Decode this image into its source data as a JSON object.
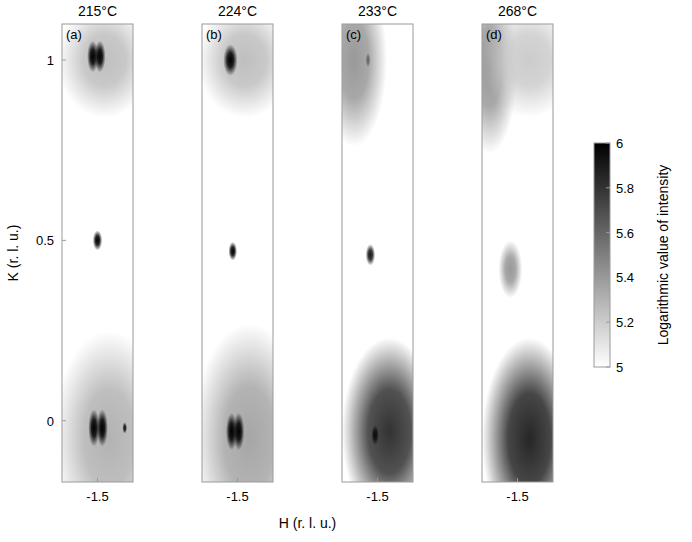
{
  "chart_data": {
    "type": "heatmap",
    "xlabel": "H (r. l. u.)",
    "ylabel": "K (r. l. u.)",
    "xlim": [
      -1.65,
      -1.35
    ],
    "xticks": [
      -1.5
    ],
    "ylim": [
      -0.17,
      1.1
    ],
    "yticks": [
      0,
      0.5,
      1
    ],
    "colorbar": {
      "label": "Logarithmic value of intensity",
      "range": [
        5,
        6
      ],
      "ticks": [
        5,
        5.2,
        5.4,
        5.6,
        5.8,
        6
      ]
    },
    "panels": [
      {
        "letter": "(a)",
        "title": "215°C",
        "spots": [
          {
            "h": -1.45,
            "k": -0.05,
            "value": 5.3,
            "width_h": 0.12,
            "width_k": 0.15
          },
          {
            "h": -1.47,
            "k": 1.0,
            "value": 5.25,
            "width_h": 0.1,
            "width_k": 0.08
          },
          {
            "h": -1.52,
            "k": 1.01,
            "value": 6,
            "width_h": 0.012,
            "width_k": 0.022
          },
          {
            "h": -1.49,
            "k": 1.01,
            "value": 6,
            "width_h": 0.012,
            "width_k": 0.022
          },
          {
            "h": -1.5,
            "k": 0.5,
            "value": 6,
            "width_h": 0.01,
            "width_k": 0.014
          },
          {
            "h": -1.515,
            "k": -0.02,
            "value": 6,
            "width_h": 0.012,
            "width_k": 0.026
          },
          {
            "h": -1.48,
            "k": -0.02,
            "value": 6,
            "width_h": 0.012,
            "width_k": 0.026
          },
          {
            "h": -1.385,
            "k": -0.02,
            "value": 5.9,
            "width_h": 0.005,
            "width_k": 0.008
          }
        ]
      },
      {
        "letter": "(b)",
        "title": "224°C",
        "spots": [
          {
            "h": -1.45,
            "k": -0.05,
            "value": 5.35,
            "width_h": 0.12,
            "width_k": 0.16
          },
          {
            "h": -1.47,
            "k": 1.0,
            "value": 5.25,
            "width_h": 0.1,
            "width_k": 0.08
          },
          {
            "h": -1.53,
            "k": 1.0,
            "value": 6,
            "width_h": 0.015,
            "width_k": 0.022
          },
          {
            "h": -1.52,
            "k": 0.47,
            "value": 6,
            "width_h": 0.009,
            "width_k": 0.013
          },
          {
            "h": -1.525,
            "k": -0.03,
            "value": 6,
            "width_h": 0.012,
            "width_k": 0.026
          },
          {
            "h": -1.495,
            "k": -0.03,
            "value": 6,
            "width_h": 0.012,
            "width_k": 0.026
          }
        ]
      },
      {
        "letter": "(c)",
        "title": "233°C",
        "spots": [
          {
            "h": -1.45,
            "k": -0.03,
            "value": 5.8,
            "width_h": 0.1,
            "width_k": 0.13
          },
          {
            "h": -1.6,
            "k": 1.0,
            "value": 5.4,
            "width_h": 0.07,
            "width_k": 0.12
          },
          {
            "h": -1.54,
            "k": 1.0,
            "value": 5.6,
            "width_h": 0.005,
            "width_k": 0.01
          },
          {
            "h": -1.53,
            "k": 0.46,
            "value": 5.9,
            "width_h": 0.01,
            "width_k": 0.015
          },
          {
            "h": -1.51,
            "k": -0.04,
            "value": 5.95,
            "width_h": 0.008,
            "width_k": 0.014
          }
        ]
      },
      {
        "letter": "(d)",
        "title": "268°C",
        "spots": [
          {
            "h": -1.45,
            "k": -0.05,
            "value": 5.85,
            "width_h": 0.1,
            "width_k": 0.14
          },
          {
            "h": -1.62,
            "k": 0.98,
            "value": 5.4,
            "width_h": 0.06,
            "width_k": 0.12
          },
          {
            "h": -1.45,
            "k": 1.0,
            "value": 5.2,
            "width_h": 0.1,
            "width_k": 0.08
          },
          {
            "h": -1.53,
            "k": 0.42,
            "value": 5.4,
            "width_h": 0.025,
            "width_k": 0.04
          }
        ]
      }
    ]
  }
}
